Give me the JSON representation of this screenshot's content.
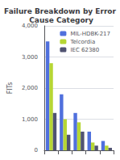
{
  "chart_data": {
    "type": "bar",
    "title": "Failure Breakdown by Error Cause Category",
    "categories": [
      null,
      null,
      null,
      null,
      null
    ],
    "series": [
      {
        "name": "MIL-HDBK-217",
        "values": [
          3500,
          1800,
          1200,
          600,
          300
        ]
      },
      {
        "name": "Telcordia",
        "values": [
          2800,
          1000,
          900,
          250,
          150
        ]
      },
      {
        "name": "IEC 62380",
        "values": [
          1200,
          500,
          600,
          150,
          80
        ]
      }
    ],
    "ylabel": "FITs",
    "ylim": [
      0,
      4000
    ],
    "yticks": [
      0,
      1000,
      2000,
      3000,
      4000
    ],
    "grid": true,
    "legend": "upper-right",
    "tick_labels": "y"
  }
}
